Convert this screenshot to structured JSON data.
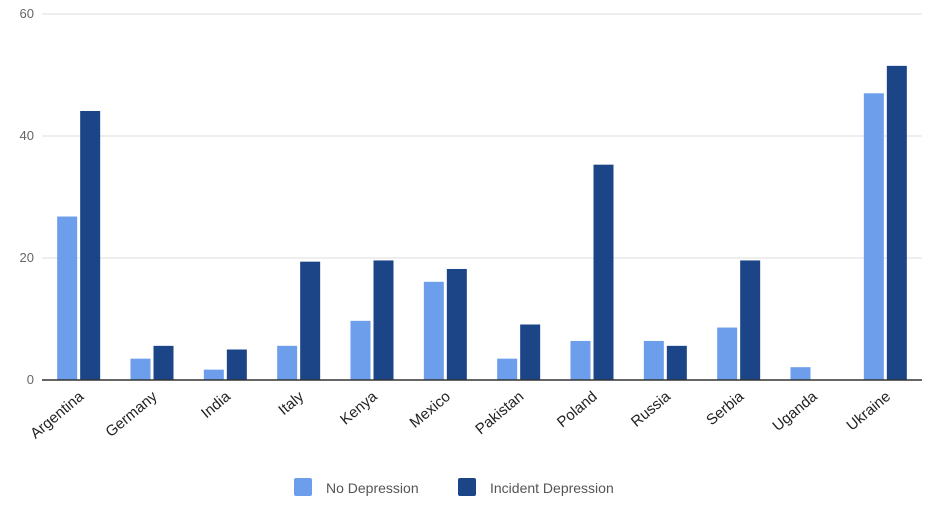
{
  "chart_data": {
    "type": "bar",
    "title": "",
    "xlabel": "",
    "ylabel": "",
    "ylim": [
      0,
      60
    ],
    "yticks": [
      0,
      20,
      40,
      60
    ],
    "grid": true,
    "legend_position": "bottom",
    "categories": [
      "Argentina",
      "Germany",
      "India",
      "Italy",
      "Kenya",
      "Mexico",
      "Pakistan",
      "Poland",
      "Russia",
      "Serbia",
      "Uganda",
      "Ukraine"
    ],
    "series": [
      {
        "name": "No Depression",
        "color": "#6d9eeb",
        "values": [
          26.8,
          3.5,
          1.7,
          5.6,
          9.7,
          16.1,
          3.5,
          6.4,
          6.4,
          8.6,
          2.1,
          47.0
        ]
      },
      {
        "name": "Incident Depression",
        "color": "#1c4587",
        "values": [
          44.1,
          5.6,
          5.0,
          19.4,
          19.6,
          18.2,
          9.1,
          35.3,
          5.6,
          19.6,
          0,
          51.5
        ]
      }
    ]
  }
}
